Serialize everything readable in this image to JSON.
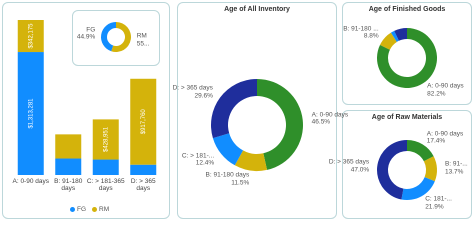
{
  "chart_data": [
    {
      "type": "stacked-bar",
      "categories": [
        "A: 0-90 days",
        "B: 91-180 days",
        "C: > 181-365 days",
        "D: > 365 days"
      ],
      "series": [
        {
          "name": "FG",
          "color": "#118dff",
          "values": [
            1313281,
            176000,
            165000,
            110000
          ],
          "value_labels": [
            "$1,313,281",
            null,
            null,
            null
          ]
        },
        {
          "name": "RM",
          "color": "#d4b30b",
          "values": [
            342175,
            258000,
            428951,
            917760
          ],
          "value_labels": [
            "$342,175",
            null,
            "$428,951",
            "$917,760"
          ]
        }
      ]
    },
    {
      "type": "donut",
      "categories": [
        "RM",
        "FG"
      ],
      "values": [
        55.1,
        44.9
      ],
      "value_labels": [
        "55...",
        "44.9%"
      ],
      "colors": [
        "#d4b30b",
        "#118dff"
      ]
    },
    {
      "type": "donut",
      "title": "Age of All Inventory",
      "categories": [
        "A: 0-90 days",
        "B: 91-180 days",
        "C: > 181-...",
        "D: > 365 days"
      ],
      "values": [
        46.5,
        11.5,
        12.4,
        29.6
      ],
      "value_labels": [
        "46.5%",
        "11.5%",
        "12.4%",
        "29.6%"
      ],
      "colors": [
        "#2f8f2a",
        "#d4b30b",
        "#118dff",
        "#1f2e9c"
      ]
    },
    {
      "type": "donut",
      "title": "Age of Finished Goods",
      "categories": [
        "A: 0-90 days",
        "B: 91-180 ...",
        null,
        null
      ],
      "values": [
        82.2,
        8.8,
        2.0,
        7.0
      ],
      "value_labels": [
        "82.2%",
        "8.8%",
        null,
        null
      ],
      "colors": [
        "#2f8f2a",
        "#d4b30b",
        "#118dff",
        "#1f2e9c"
      ]
    },
    {
      "type": "donut",
      "title": "Age of Raw Materials",
      "categories": [
        "A: 0-90 days",
        "B: 91-...",
        "C: 181-...",
        "D: > 365 days"
      ],
      "values": [
        17.4,
        13.7,
        21.9,
        47.0
      ],
      "value_labels": [
        "17.4%",
        "13.7%",
        "21.9%",
        "47.0%"
      ],
      "colors": [
        "#2f8f2a",
        "#d4b30b",
        "#118dff",
        "#1f2e9c"
      ]
    }
  ]
}
